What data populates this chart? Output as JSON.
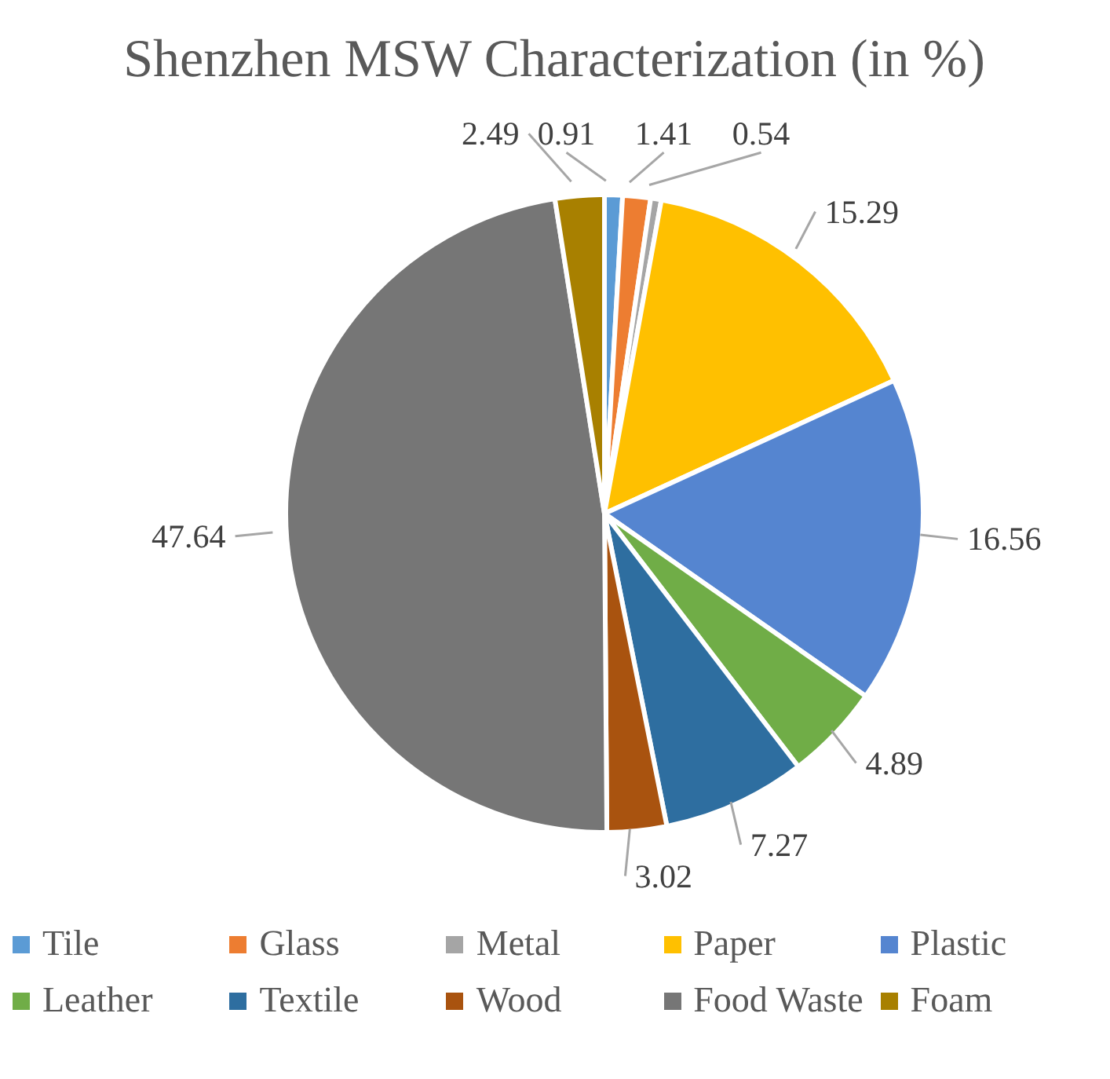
{
  "chart_data": {
    "type": "pie",
    "title": "Shenzhen MSW Characterization (in %)",
    "categories": [
      "Tile",
      "Glass",
      "Metal",
      "Paper",
      "Plastic",
      "Leather",
      "Textile",
      "Wood",
      "Food Waste",
      "Foam"
    ],
    "values": [
      0.91,
      1.41,
      0.54,
      15.29,
      16.56,
      4.89,
      7.27,
      3.02,
      47.64,
      2.49
    ],
    "colors": [
      "#5b9bd5",
      "#ed7d31",
      "#a5a5a5",
      "#ffc000",
      "#5585d0",
      "#70ad47",
      "#2e6ea0",
      "#a9530f",
      "#767676",
      "#a88000"
    ],
    "data_labels": true,
    "legend": "bottom"
  }
}
